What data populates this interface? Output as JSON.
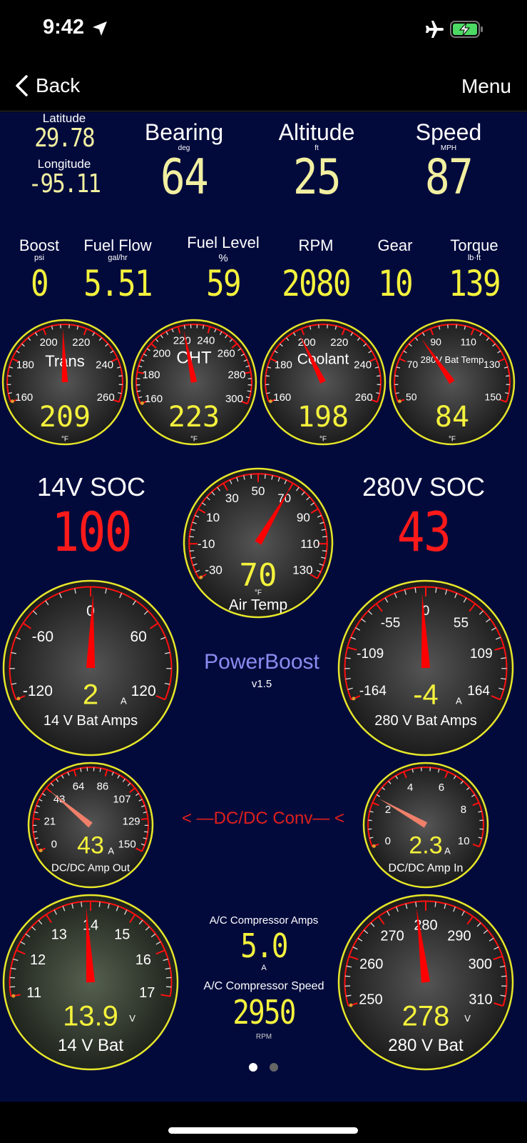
{
  "status_bar": {
    "time": "9:42",
    "icons": [
      "location-arrow-icon",
      "airplane-icon",
      "battery-charging-icon"
    ],
    "battery_color": "#4cd964"
  },
  "nav": {
    "back_label": "Back",
    "menu_label": "Menu"
  },
  "gps": {
    "latitude_label": "Latitude",
    "latitude": "29.78",
    "longitude_label": "Longitude",
    "longitude": "-95.11"
  },
  "top_readouts": [
    {
      "label": "Bearing",
      "unit": "deg",
      "value": "64"
    },
    {
      "label": "Altitude",
      "unit": "ft",
      "value": "25"
    },
    {
      "label": "Speed",
      "unit": "MPH",
      "value": "87"
    }
  ],
  "engine_readouts": [
    {
      "label": "Boost",
      "unit": "psi",
      "value": "0"
    },
    {
      "label": "Fuel Flow",
      "unit": "gal/hr",
      "value": "5.51"
    },
    {
      "label": "Fuel Level",
      "unit": "%",
      "value": "59"
    },
    {
      "label": "RPM",
      "unit": "",
      "value": "2080"
    },
    {
      "label": "Gear",
      "unit": "",
      "value": "10"
    },
    {
      "label": "Torque",
      "unit": "lb·ft",
      "value": "139"
    }
  ],
  "soc": {
    "left_label": "14V SOC",
    "left_value": "100",
    "right_label": "280V SOC",
    "right_value": "43",
    "color": "#ff1a1a"
  },
  "app": {
    "name": "PowerBoost",
    "version": "v1.5",
    "name_color": "#8a8cf0"
  },
  "dcdc_label": "< —DC/DC  Conv— <",
  "ac": {
    "amps_label": "A/C Compressor  Amps",
    "amps_value": "5.0",
    "amps_unit": "A",
    "speed_label": "A/C Compressor Speed",
    "speed_value": "2950",
    "speed_unit": "RPM"
  },
  "colors": {
    "background": "#020a3c",
    "digits": "#f4f23c",
    "needle": "#ff0000",
    "bezel": "#e6e62a"
  },
  "gauges": [
    {
      "id": "trans",
      "title": "Trans",
      "labels": [
        160,
        180,
        200,
        220,
        240,
        260
      ],
      "value": 209,
      "display": "209",
      "unit": "°F"
    },
    {
      "id": "cht",
      "title": "CHT",
      "labels": [
        160,
        180,
        200,
        220,
        240,
        260,
        280,
        300
      ],
      "value": 223,
      "display": "223",
      "unit": "°F"
    },
    {
      "id": "coolant",
      "title": "Coolant",
      "labels": [
        160,
        180,
        200,
        220,
        240,
        260
      ],
      "value": 198,
      "display": "198",
      "unit": "°F"
    },
    {
      "id": "battemp",
      "title": "280V Bat Temp",
      "labels": [
        50,
        70,
        90,
        110,
        130,
        150
      ],
      "value": 84,
      "display": "84",
      "unit": "°F"
    },
    {
      "id": "airtemp",
      "title": "Air Temp",
      "labels": [
        -30,
        -10,
        10,
        30,
        50,
        70,
        90,
        110,
        130
      ],
      "value": 70,
      "display": "70",
      "unit": "°F"
    },
    {
      "id": "amps14",
      "title": "14 V Bat Amps",
      "labels": [
        -120,
        -60,
        0,
        60,
        120
      ],
      "value": 2,
      "display": "2",
      "unit": "A"
    },
    {
      "id": "amps280",
      "title": "280 V Bat Amps",
      "labels": [
        -164,
        -109,
        -55,
        0,
        55,
        109,
        164
      ],
      "value": -4,
      "display": "-4",
      "unit": "A"
    },
    {
      "id": "dcout",
      "title": "DC/DC Amp Out",
      "labels": [
        0,
        21,
        43,
        64,
        86,
        107,
        129,
        150
      ],
      "value": 43,
      "display": "43",
      "unit": "A"
    },
    {
      "id": "dcin",
      "title": "DC/DC Amp In",
      "labels": [
        0,
        2,
        4,
        6,
        8,
        10
      ],
      "value": 2.3,
      "display": "2.3",
      "unit": "A"
    },
    {
      "id": "bat14",
      "title": "14 V Bat",
      "labels": [
        11,
        12,
        13,
        14,
        15,
        16,
        17
      ],
      "value": 13.9,
      "display": "13.9",
      "unit": "V"
    },
    {
      "id": "bat280",
      "title": "280 V Bat",
      "labels": [
        250,
        260,
        270,
        280,
        290,
        300,
        310
      ],
      "value": 278,
      "display": "278",
      "unit": "V"
    }
  ],
  "pager": {
    "pages": 2,
    "current": 1
  }
}
